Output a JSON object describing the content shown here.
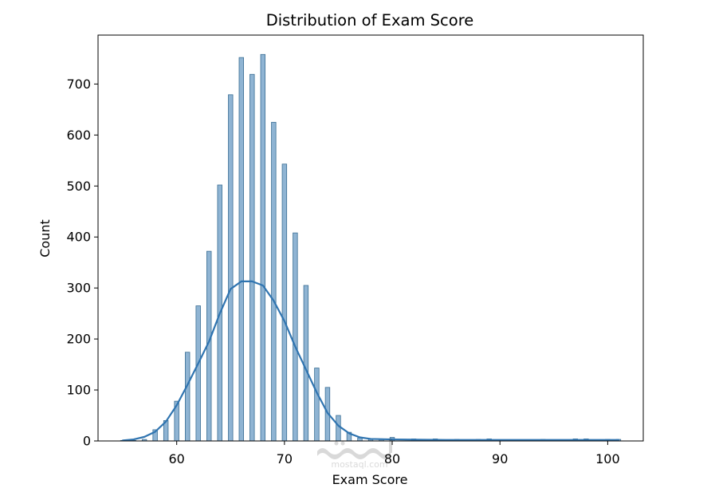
{
  "chart_data": {
    "type": "bar",
    "subtype": "histogram-with-kde",
    "title": "Distribution of Exam Score",
    "xlabel": "Exam Score",
    "ylabel": "Count",
    "xlim": [
      52.7,
      103.3
    ],
    "ylim": [
      0,
      796
    ],
    "x_ticks": [
      60,
      70,
      80,
      90,
      100
    ],
    "y_ticks": [
      0,
      100,
      200,
      300,
      400,
      500,
      600,
      700
    ],
    "grid": false,
    "legend": "none",
    "bar_color": "#8fb4d3",
    "bar_edge_color": "#3a6e94",
    "kde_color": "#2f74b0",
    "bars": [
      {
        "x": 55,
        "count": 1
      },
      {
        "x": 56,
        "count": 1
      },
      {
        "x": 57,
        "count": 3
      },
      {
        "x": 58,
        "count": 22
      },
      {
        "x": 59,
        "count": 40
      },
      {
        "x": 60,
        "count": 78
      },
      {
        "x": 61,
        "count": 174
      },
      {
        "x": 62,
        "count": 265
      },
      {
        "x": 63,
        "count": 372
      },
      {
        "x": 64,
        "count": 502
      },
      {
        "x": 65,
        "count": 679
      },
      {
        "x": 66,
        "count": 752
      },
      {
        "x": 67,
        "count": 719
      },
      {
        "x": 68,
        "count": 758
      },
      {
        "x": 69,
        "count": 625
      },
      {
        "x": 70,
        "count": 543
      },
      {
        "x": 71,
        "count": 408
      },
      {
        "x": 72,
        "count": 305
      },
      {
        "x": 73,
        "count": 143
      },
      {
        "x": 74,
        "count": 105
      },
      {
        "x": 75,
        "count": 50
      },
      {
        "x": 76,
        "count": 17
      },
      {
        "x": 77,
        "count": 6
      },
      {
        "x": 78,
        "count": 4
      },
      {
        "x": 79,
        "count": 4
      },
      {
        "x": 80,
        "count": 7
      },
      {
        "x": 82,
        "count": 4
      },
      {
        "x": 84,
        "count": 4
      },
      {
        "x": 86,
        "count": 3
      },
      {
        "x": 88,
        "count": 3
      },
      {
        "x": 89,
        "count": 4
      },
      {
        "x": 94,
        "count": 3
      },
      {
        "x": 97,
        "count": 4
      },
      {
        "x": 98,
        "count": 4
      },
      {
        "x": 100,
        "count": 3
      },
      {
        "x": 101,
        "count": 3
      }
    ],
    "kde": [
      [
        55,
        1
      ],
      [
        56,
        3
      ],
      [
        57,
        8
      ],
      [
        58,
        18
      ],
      [
        59,
        38
      ],
      [
        60,
        70
      ],
      [
        61,
        110
      ],
      [
        62,
        152
      ],
      [
        63,
        195
      ],
      [
        64,
        250
      ],
      [
        65,
        298
      ],
      [
        66,
        313
      ],
      [
        67,
        313
      ],
      [
        68,
        305
      ],
      [
        69,
        275
      ],
      [
        70,
        235
      ],
      [
        71,
        185
      ],
      [
        72,
        140
      ],
      [
        73,
        95
      ],
      [
        74,
        55
      ],
      [
        75,
        30
      ],
      [
        76,
        15
      ],
      [
        77,
        7
      ],
      [
        78,
        4
      ],
      [
        80,
        3
      ],
      [
        85,
        2
      ],
      [
        90,
        2
      ],
      [
        95,
        2
      ],
      [
        101,
        2
      ]
    ]
  },
  "watermark": {
    "arabic": "مستقل",
    "url": "mostaql.com"
  }
}
